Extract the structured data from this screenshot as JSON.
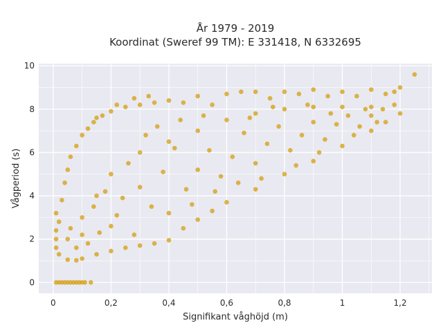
{
  "chart_data": {
    "type": "scatter",
    "title_line1": "År 1979 - 2019",
    "title_line2": "Koordinat (Sweref 99 TM): E 331418, N 6332695",
    "xlabel": "Signifikant våghöjd (m)",
    "ylabel": "Vågperiod (s)",
    "xlim": [
      -0.05,
      1.31
    ],
    "ylim": [
      -0.5,
      10.1
    ],
    "x_ticks": [
      0,
      0.2,
      0.4,
      0.6,
      0.8,
      1,
      1.2
    ],
    "x_tick_labels": [
      "0",
      "0,2",
      "0,4",
      "0,6",
      "0,8",
      "1",
      "1,2"
    ],
    "y_ticks": [
      0,
      2,
      4,
      6,
      8,
      10
    ],
    "y_tick_labels": [
      "0",
      "2",
      "4",
      "6",
      "8",
      "10"
    ],
    "grid": true,
    "marker_color": "#d4a31c",
    "background_color": "#e9e9f1",
    "series": [
      {
        "points": [
          [
            0.01,
            0.0
          ],
          [
            0.02,
            0.0
          ],
          [
            0.03,
            0.0
          ],
          [
            0.04,
            0.0
          ],
          [
            0.05,
            0.0
          ],
          [
            0.06,
            0.0
          ],
          [
            0.07,
            0.0
          ],
          [
            0.08,
            0.0
          ],
          [
            0.09,
            0.0
          ],
          [
            0.1,
            0.0
          ],
          [
            0.11,
            0.0
          ],
          [
            0.13,
            0.0
          ],
          [
            0.01,
            1.6
          ],
          [
            0.01,
            2.0
          ],
          [
            0.01,
            2.4
          ],
          [
            0.01,
            3.2
          ],
          [
            0.02,
            1.3
          ],
          [
            0.02,
            2.8
          ],
          [
            0.03,
            3.8
          ],
          [
            0.04,
            4.6
          ],
          [
            0.05,
            5.2
          ],
          [
            0.06,
            5.8
          ],
          [
            0.08,
            6.3
          ],
          [
            0.1,
            6.8
          ],
          [
            0.12,
            7.1
          ],
          [
            0.14,
            7.4
          ],
          [
            0.17,
            7.7
          ],
          [
            0.2,
            7.9
          ],
          [
            0.25,
            8.1
          ],
          [
            0.3,
            8.2
          ],
          [
            0.35,
            8.3
          ],
          [
            0.4,
            8.4
          ],
          [
            0.5,
            8.6
          ],
          [
            0.6,
            8.7
          ],
          [
            0.7,
            8.8
          ],
          [
            0.8,
            8.8
          ],
          [
            0.9,
            8.9
          ],
          [
            1.0,
            8.8
          ],
          [
            1.1,
            8.9
          ],
          [
            1.2,
            9.0
          ],
          [
            1.25,
            9.6
          ],
          [
            0.15,
            7.6
          ],
          [
            0.22,
            8.2
          ],
          [
            0.28,
            8.5
          ],
          [
            0.33,
            8.6
          ],
          [
            0.45,
            8.3
          ],
          [
            0.55,
            8.2
          ],
          [
            0.65,
            8.8
          ],
          [
            0.75,
            8.5
          ],
          [
            0.85,
            8.7
          ],
          [
            0.95,
            8.6
          ],
          [
            1.05,
            8.6
          ],
          [
            1.15,
            8.7
          ],
          [
            1.18,
            8.8
          ],
          [
            0.05,
            1.05
          ],
          [
            0.08,
            1.02
          ],
          [
            0.1,
            1.1
          ],
          [
            0.15,
            1.3
          ],
          [
            0.2,
            1.45
          ],
          [
            0.25,
            1.6
          ],
          [
            0.3,
            1.7
          ],
          [
            0.35,
            1.8
          ],
          [
            0.4,
            1.95
          ],
          [
            0.45,
            2.5
          ],
          [
            0.5,
            2.9
          ],
          [
            0.55,
            3.3
          ],
          [
            0.6,
            3.7
          ],
          [
            0.7,
            4.3
          ],
          [
            0.8,
            5.0
          ],
          [
            0.9,
            5.6
          ],
          [
            1.0,
            6.3
          ],
          [
            1.1,
            7.0
          ],
          [
            1.15,
            7.4
          ],
          [
            1.2,
            7.8
          ],
          [
            0.05,
            2.0
          ],
          [
            0.1,
            3.0
          ],
          [
            0.15,
            4.0
          ],
          [
            0.2,
            5.0
          ],
          [
            0.3,
            6.0
          ],
          [
            0.4,
            6.5
          ],
          [
            0.5,
            7.0
          ],
          [
            0.6,
            7.5
          ],
          [
            0.7,
            7.8
          ],
          [
            0.8,
            8.0
          ],
          [
            0.9,
            8.1
          ],
          [
            1.0,
            8.1
          ],
          [
            1.1,
            8.1
          ],
          [
            1.18,
            8.2
          ],
          [
            0.06,
            2.5
          ],
          [
            0.1,
            2.2
          ],
          [
            0.14,
            3.5
          ],
          [
            0.18,
            4.2
          ],
          [
            0.22,
            3.1
          ],
          [
            0.26,
            5.5
          ],
          [
            0.3,
            4.4
          ],
          [
            0.34,
            3.5
          ],
          [
            0.38,
            5.1
          ],
          [
            0.42,
            6.2
          ],
          [
            0.46,
            4.3
          ],
          [
            0.5,
            5.2
          ],
          [
            0.54,
            6.1
          ],
          [
            0.58,
            4.9
          ],
          [
            0.62,
            5.8
          ],
          [
            0.66,
            6.9
          ],
          [
            0.7,
            5.5
          ],
          [
            0.74,
            6.4
          ],
          [
            0.78,
            7.2
          ],
          [
            0.82,
            6.1
          ],
          [
            0.86,
            6.8
          ],
          [
            0.9,
            7.4
          ],
          [
            0.94,
            6.6
          ],
          [
            0.98,
            7.3
          ],
          [
            1.02,
            7.7
          ],
          [
            1.06,
            7.2
          ],
          [
            1.1,
            7.7
          ],
          [
            1.14,
            8.0
          ],
          [
            0.08,
            1.6
          ],
          [
            0.12,
            1.8
          ],
          [
            0.16,
            2.3
          ],
          [
            0.2,
            2.6
          ],
          [
            0.24,
            3.9
          ],
          [
            0.28,
            2.2
          ],
          [
            0.32,
            6.8
          ],
          [
            0.36,
            7.2
          ],
          [
            0.4,
            3.2
          ],
          [
            0.44,
            7.5
          ],
          [
            0.48,
            3.6
          ],
          [
            0.52,
            7.7
          ],
          [
            0.56,
            4.2
          ],
          [
            0.64,
            4.6
          ],
          [
            0.68,
            7.6
          ],
          [
            0.72,
            4.8
          ],
          [
            0.76,
            8.1
          ],
          [
            0.84,
            5.4
          ],
          [
            0.88,
            8.2
          ],
          [
            0.92,
            6.0
          ],
          [
            0.96,
            7.8
          ],
          [
            1.04,
            6.8
          ],
          [
            1.08,
            8.0
          ],
          [
            1.12,
            7.4
          ]
        ]
      }
    ]
  }
}
